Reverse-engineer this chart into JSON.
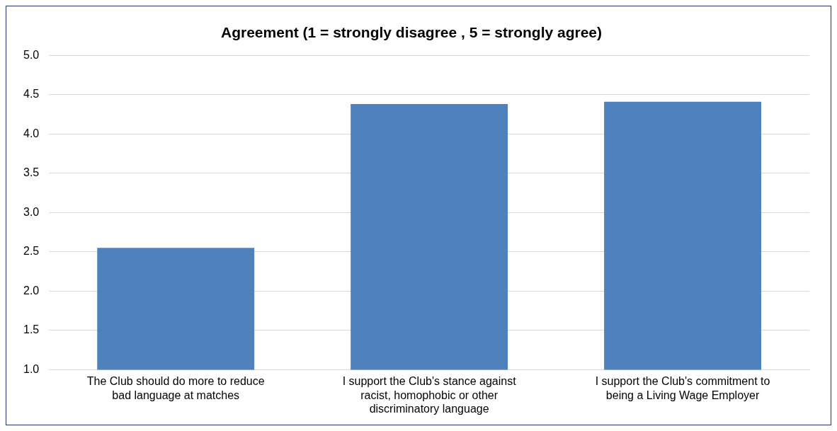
{
  "chart_data": {
    "type": "bar",
    "title": "Agreement (1 = strongly disagree , 5 = strongly agree)",
    "categories": [
      "The Club should do more to reduce bad language at matches",
      "I support the Club's stance against racist, homophobic or other discriminatory language",
      "I support the Club's commitment to being a Living Wage Employer"
    ],
    "values": [
      2.55,
      4.38,
      4.41
    ],
    "color": "#4f81bd",
    "ylim": [
      1,
      5
    ],
    "yticks": [
      {
        "value": 1,
        "label": "1.0"
      },
      1.5,
      {
        "value": 2,
        "label": "2.0"
      },
      2.5,
      {
        "value": 3,
        "label": "3.0"
      },
      3.5,
      {
        "value": 4,
        "label": "4.0"
      },
      4.5,
      {
        "value": 5,
        "label": "5.0"
      }
    ],
    "grid": "y",
    "legend": false
  }
}
